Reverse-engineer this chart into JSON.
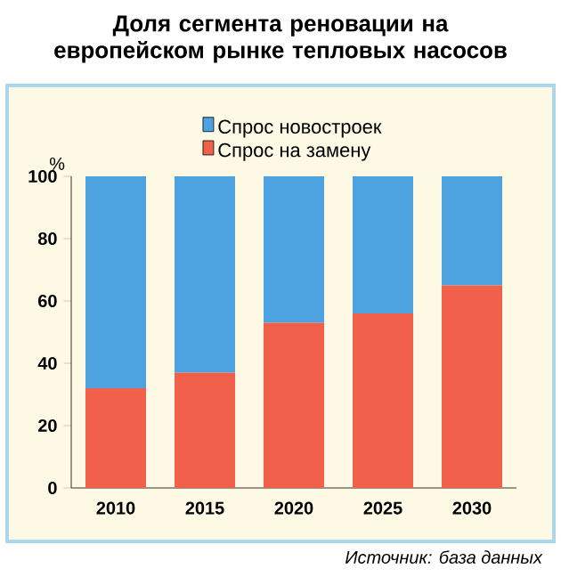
{
  "chart_data": {
    "type": "bar",
    "stacked": true,
    "title": "Доля сегмента реновации на европейском рынке тепловых насосов",
    "ylabel": "%",
    "categories": [
      "2010",
      "2015",
      "2020",
      "2025",
      "2030"
    ],
    "series": [
      {
        "name": "Спрос на замену",
        "color": "#f0604a",
        "values": [
          32,
          37,
          53,
          56,
          65
        ]
      },
      {
        "name": "Спрос новостроек",
        "color": "#4da3e0",
        "values": [
          68,
          63,
          47,
          44,
          35
        ]
      }
    ],
    "ylim": [
      0,
      100
    ],
    "yticks": [
      0,
      20,
      40,
      60,
      80,
      100
    ],
    "grid": false,
    "legend": "top",
    "annotations": [
      "Источник: база данных"
    ]
  }
}
